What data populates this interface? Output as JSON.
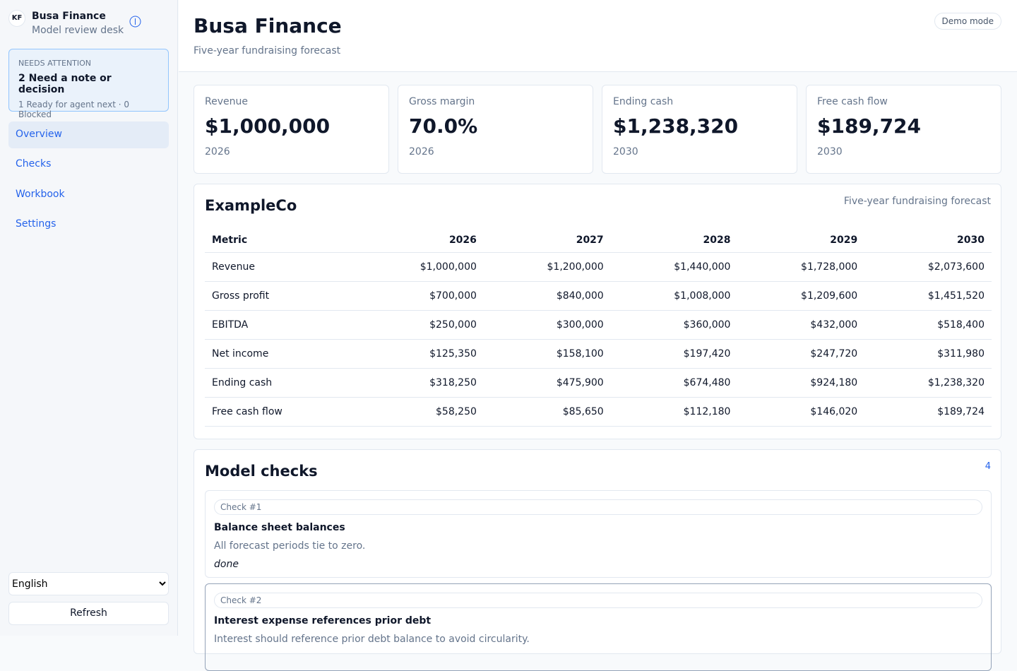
{
  "sidebar": {
    "logo": "KF",
    "brand": "Busa Finance",
    "subtitle": "Model review desk",
    "attention": {
      "label": "NEEDS ATTENTION",
      "headline": "2 Need a note or decision",
      "detail": "1 Ready for agent next · 0 Blocked"
    },
    "nav": [
      "Overview",
      "Checks",
      "Workbook",
      "Settings"
    ],
    "language": "English",
    "refresh": "Refresh"
  },
  "header": {
    "title": "Busa Finance",
    "subtitle": "Five-year fundraising forecast",
    "badge": "Demo mode"
  },
  "kpis": [
    {
      "label": "Revenue",
      "value": "$1,000,000",
      "year": "2026"
    },
    {
      "label": "Gross margin",
      "value": "70.0%",
      "year": "2026"
    },
    {
      "label": "Ending cash",
      "value": "$1,238,320",
      "year": "2030"
    },
    {
      "label": "Free cash flow",
      "value": "$189,724",
      "year": "2030"
    }
  ],
  "table": {
    "title": "ExampleCo",
    "note": "Five-year fundraising forecast",
    "header": [
      "Metric",
      "2026",
      "2027",
      "2028",
      "2029",
      "2030"
    ],
    "rows": [
      [
        "Revenue",
        "$1,000,000",
        "$1,200,000",
        "$1,440,000",
        "$1,728,000",
        "$2,073,600"
      ],
      [
        "Gross profit",
        "$700,000",
        "$840,000",
        "$1,008,000",
        "$1,209,600",
        "$1,451,520"
      ],
      [
        "EBITDA",
        "$250,000",
        "$300,000",
        "$360,000",
        "$432,000",
        "$518,400"
      ],
      [
        "Net income",
        "$125,350",
        "$158,100",
        "$197,420",
        "$247,720",
        "$311,980"
      ],
      [
        "Ending cash",
        "$318,250",
        "$475,900",
        "$674,480",
        "$924,180",
        "$1,238,320"
      ],
      [
        "Free cash flow",
        "$58,250",
        "$85,650",
        "$112,180",
        "$146,020",
        "$189,724"
      ]
    ]
  },
  "checks": {
    "title": "Model checks",
    "count": "4",
    "items": [
      {
        "tag": "Check #1",
        "title": "Balance sheet balances",
        "description": "All forecast periods tie to zero.",
        "status": "done"
      },
      {
        "tag": "Check #2",
        "title": "Interest expense references prior debt",
        "description": "Interest should reference prior debt balance to avoid circularity."
      }
    ]
  }
}
